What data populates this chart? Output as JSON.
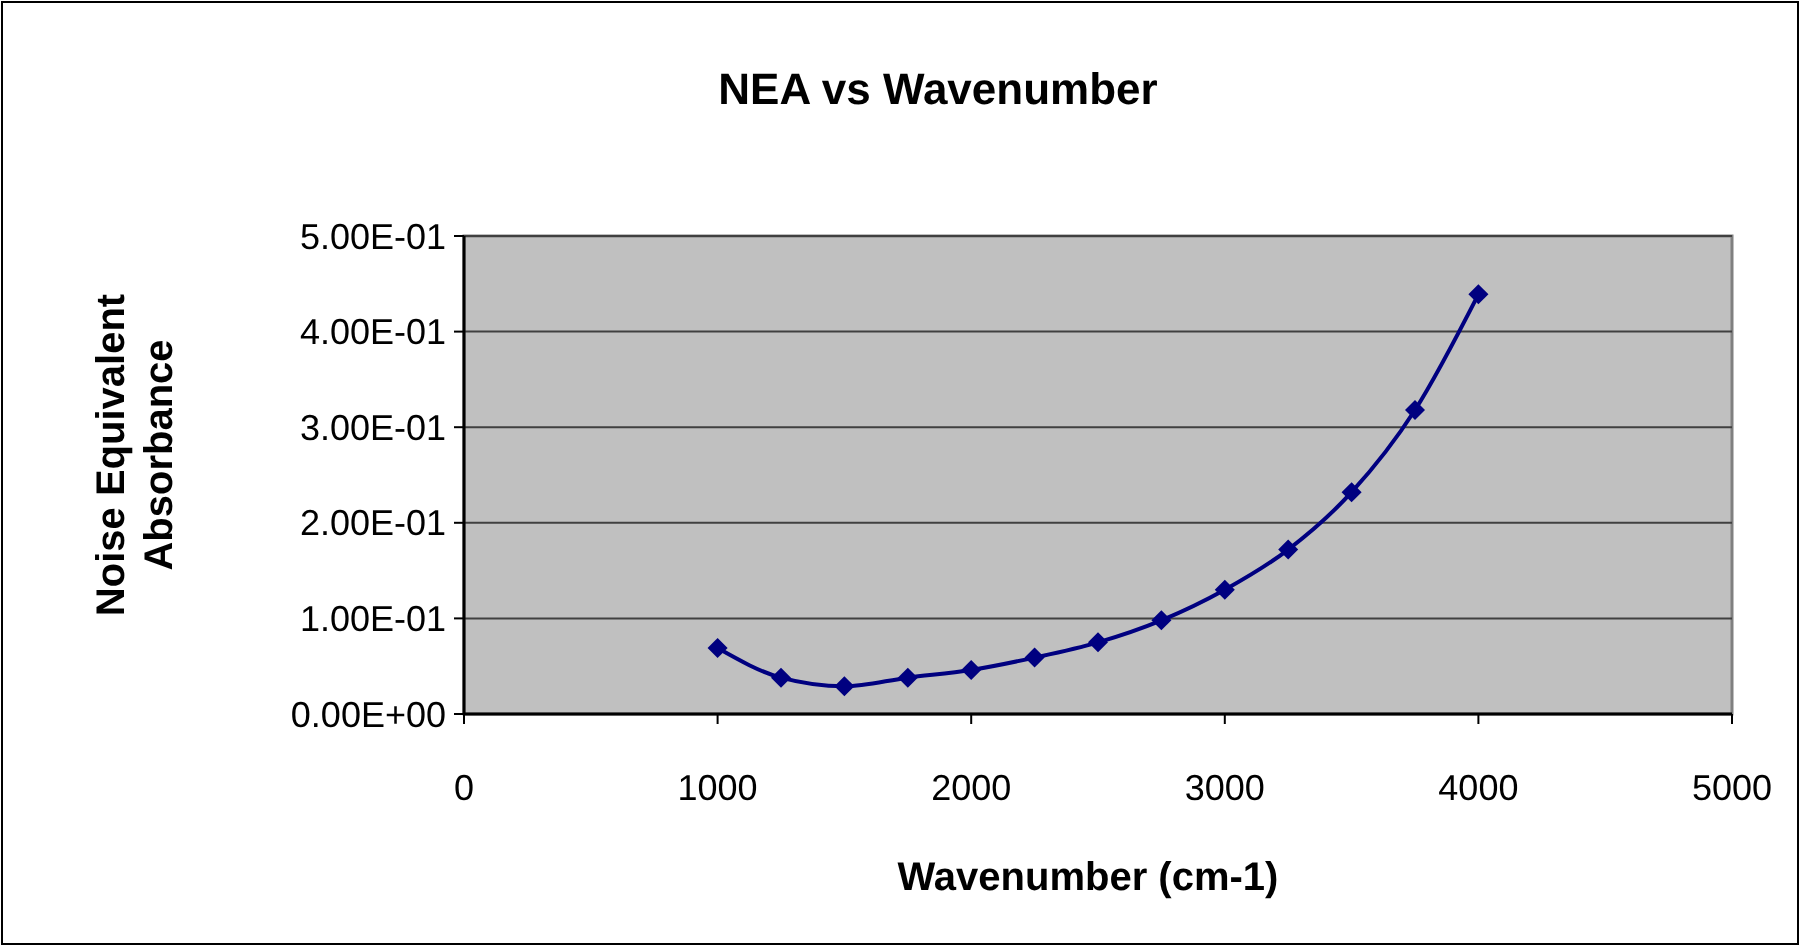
{
  "chart_data": {
    "type": "line",
    "title": "NEA vs Wavenumber",
    "xlabel": "Wavenumber (cm-1)",
    "ylabel": "Noise Equivalent Absorbance",
    "x": [
      1000,
      1250,
      1500,
      1750,
      2000,
      2250,
      2500,
      2750,
      3000,
      3250,
      3500,
      3750,
      4000
    ],
    "series": [
      {
        "color": "#000080",
        "values": [
          0.069,
          0.038,
          0.029,
          0.038,
          0.046,
          0.059,
          0.075,
          0.098,
          0.13,
          0.172,
          0.232,
          0.318,
          0.439
        ]
      }
    ],
    "xlim": [
      0,
      5000
    ],
    "xticks": [
      0,
      1000,
      2000,
      3000,
      4000,
      5000
    ],
    "ylim": [
      0,
      0.5
    ],
    "yticks": [
      {
        "value": 0,
        "label": "0.00E+00"
      },
      {
        "value": 0.1,
        "label": "1.00E-01"
      },
      {
        "value": 0.2,
        "label": "2.00E-01"
      },
      {
        "value": 0.3,
        "label": "3.00E-01"
      },
      {
        "value": 0.4,
        "label": "4.00E-01"
      },
      {
        "value": 0.5,
        "label": "5.00E-01"
      }
    ],
    "grid": "y",
    "marker": "diamond",
    "line_style": "solid"
  }
}
